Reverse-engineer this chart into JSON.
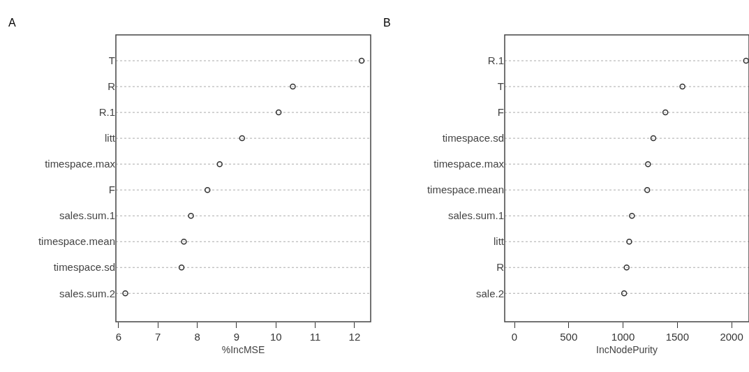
{
  "chart_data": [
    {
      "type": "scatter",
      "orientation": "horizontal",
      "title": "A",
      "xlabel": "%IncMSE",
      "categories": [
        "T",
        "R",
        "R.1",
        "litt",
        "timespace.max",
        "F",
        "sales.sum.1",
        "timespace.mean",
        "timespace.sd",
        "sales.sum.2"
      ],
      "values": [
        12.18,
        10.43,
        10.07,
        9.14,
        8.57,
        8.26,
        7.84,
        7.66,
        7.6,
        6.17
      ],
      "color": "#333333",
      "marker": "circle",
      "grid": "y",
      "line_style": "dotted",
      "xlim": [
        5.93,
        12.41
      ],
      "xticks": [
        6,
        7,
        8,
        9,
        10,
        11,
        12
      ]
    },
    {
      "type": "scatter",
      "orientation": "horizontal",
      "title": "B",
      "xlabel": "IncNodePurity",
      "categories": [
        "R.1",
        "T",
        "F",
        "timespace.sd",
        "timespace.max",
        "timespace.mean",
        "sales.sum.1",
        "litt",
        "R",
        "sale.2"
      ],
      "values": [
        2133,
        1547,
        1390,
        1279,
        1230,
        1223,
        1082,
        1057,
        1033,
        1010
      ],
      "color": "#333333",
      "marker": "circle",
      "grid": "y",
      "line_style": "dotted",
      "xlim": [
        -90,
        2160
      ],
      "xticks": [
        0,
        500,
        1000,
        1500,
        2000
      ]
    }
  ]
}
